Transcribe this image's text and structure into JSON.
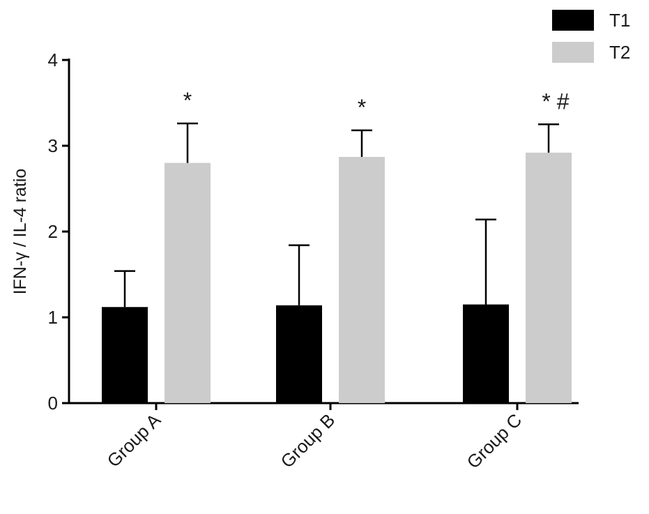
{
  "chart_data": {
    "type": "bar",
    "title": "",
    "xlabel": "",
    "ylabel": "IFN-γ / IL-4 ratio",
    "ylim": [
      0,
      4
    ],
    "yticks": [
      0,
      1,
      2,
      3,
      4
    ],
    "grid": false,
    "legend_position": "top-right",
    "categories": [
      "Group A",
      "Group B",
      "Group C"
    ],
    "series": [
      {
        "name": "T1",
        "color": "#000000",
        "values": [
          1.12,
          1.14,
          1.15
        ],
        "errors": [
          0.42,
          0.7,
          0.99
        ]
      },
      {
        "name": "T2",
        "color": "#cccccc",
        "values": [
          2.8,
          2.87,
          2.92
        ],
        "errors": [
          0.46,
          0.31,
          0.33
        ]
      }
    ],
    "annotations": [
      {
        "category": "Group A",
        "series": "T2",
        "text": "*"
      },
      {
        "category": "Group B",
        "series": "T2",
        "text": "*"
      },
      {
        "category": "Group C",
        "series": "T2",
        "text": "* #"
      }
    ]
  }
}
